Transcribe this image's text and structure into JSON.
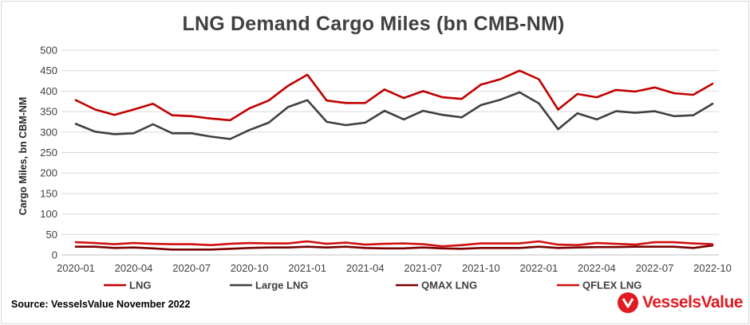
{
  "source": "Source: VesselsValue November 2022",
  "brand": {
    "name": "VesselsValue",
    "color": "#e11b22",
    "icon": "vesselsvalue-logo-icon"
  },
  "chart_data": {
    "type": "line",
    "title": "LNG Demand Cargo Miles (bn CMB-NM)",
    "xlabel": "",
    "ylabel": "Cargo Miles, bn CBM-NM",
    "ylim": [
      0,
      500
    ],
    "yticks": [
      0,
      50,
      100,
      150,
      200,
      250,
      300,
      350,
      400,
      450,
      500
    ],
    "grid": "horizontal",
    "legend_position": "bottom",
    "x": [
      "2020-01",
      "2020-02",
      "2020-03",
      "2020-04",
      "2020-05",
      "2020-06",
      "2020-07",
      "2020-08",
      "2020-09",
      "2020-10",
      "2020-11",
      "2020-12",
      "2021-01",
      "2021-02",
      "2021-03",
      "2021-04",
      "2021-05",
      "2021-06",
      "2021-07",
      "2021-08",
      "2021-09",
      "2021-10",
      "2021-11",
      "2021-12",
      "2022-01",
      "2022-02",
      "2022-03",
      "2022-04",
      "2022-05",
      "2022-06",
      "2022-07",
      "2022-08",
      "2022-09",
      "2022-10"
    ],
    "xtick_labels": [
      "2020-01",
      "2020-04",
      "2020-07",
      "2020-10",
      "2021-01",
      "2021-04",
      "2021-07",
      "2021-10",
      "2022-01",
      "2022-04",
      "2022-07",
      "2022-10"
    ],
    "series": [
      {
        "name": "LNG",
        "color": "#c00000",
        "values": [
          378,
          355,
          342,
          355,
          369,
          341,
          339,
          333,
          329,
          358,
          377,
          413,
          440,
          377,
          371,
          371,
          404,
          383,
          400,
          385,
          381,
          416,
          429,
          450,
          429,
          355,
          393,
          385,
          403,
          399,
          409,
          395,
          391,
          418
        ]
      },
      {
        "name": "Large LNG",
        "color": "#404040",
        "values": [
          320,
          301,
          295,
          297,
          319,
          297,
          297,
          289,
          283,
          305,
          323,
          361,
          378,
          325,
          317,
          323,
          352,
          331,
          352,
          342,
          336,
          366,
          379,
          397,
          370,
          307,
          346,
          331,
          351,
          347,
          351,
          339,
          341,
          369
        ]
      },
      {
        "name": "QMAX LNG",
        "color": "#7a0000",
        "values": [
          20,
          20,
          17,
          18,
          16,
          13,
          13,
          13,
          15,
          17,
          18,
          18,
          20,
          18,
          20,
          17,
          16,
          16,
          18,
          16,
          15,
          17,
          17,
          17,
          20,
          17,
          18,
          19,
          19,
          20,
          20,
          20,
          17,
          23
        ]
      },
      {
        "name": "QFLEX LNG",
        "color": "#d01010",
        "values": [
          31,
          29,
          26,
          29,
          27,
          26,
          26,
          24,
          27,
          29,
          28,
          28,
          33,
          27,
          30,
          25,
          27,
          28,
          26,
          21,
          24,
          28,
          28,
          28,
          33,
          25,
          24,
          29,
          27,
          25,
          31,
          31,
          28,
          26
        ]
      }
    ]
  }
}
